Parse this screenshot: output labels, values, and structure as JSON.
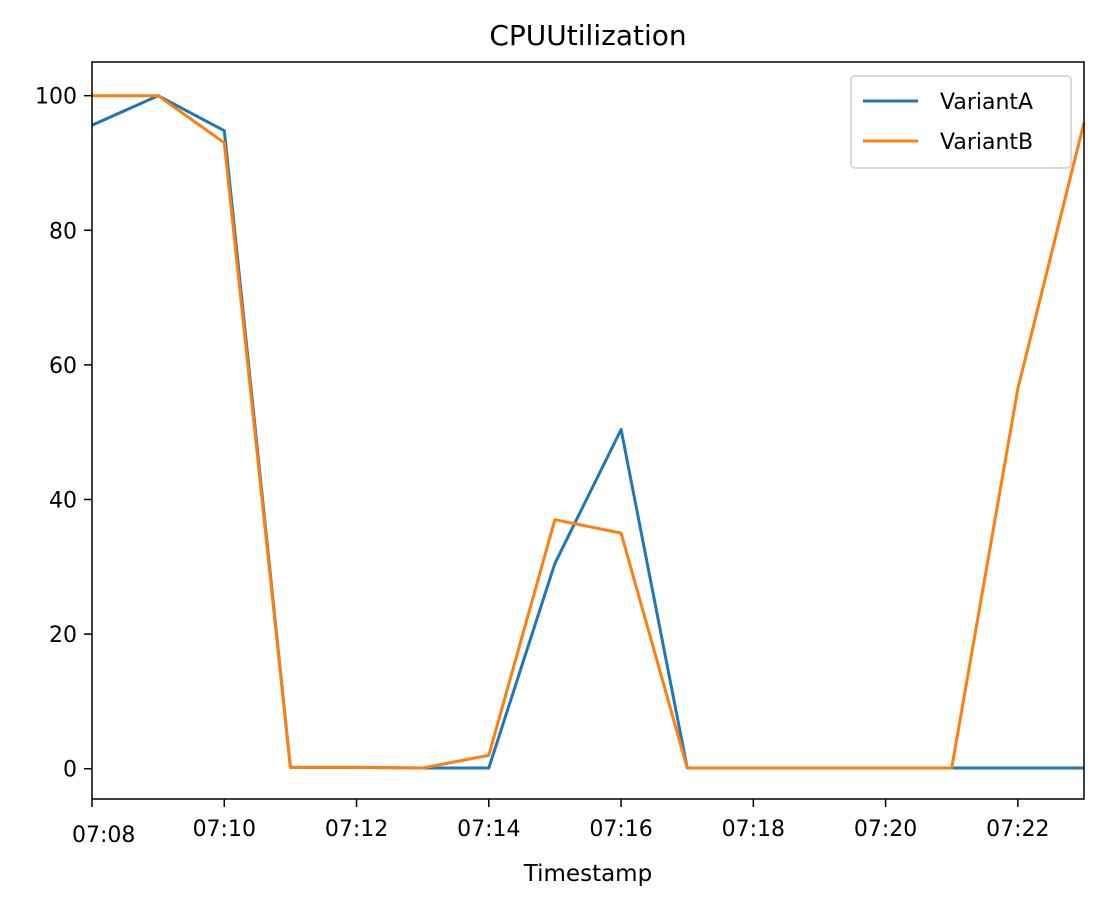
{
  "chart_data": {
    "type": "line",
    "title": "CPUUtilization",
    "xlabel": "Timestamp",
    "ylabel": "",
    "x": [
      "07:08",
      "07:09",
      "07:10",
      "07:11",
      "07:12",
      "07:13",
      "07:14",
      "07:15",
      "07:16",
      "07:17",
      "07:18",
      "07:19",
      "07:20",
      "07:21",
      "07:22",
      "07:23"
    ],
    "x_ticks": [
      "07:08",
      "07:10",
      "07:12",
      "07:14",
      "07:16",
      "07:18",
      "07:20",
      "07:22"
    ],
    "y_ticks": [
      0,
      20,
      40,
      60,
      80,
      100
    ],
    "ylim": [
      -4.5,
      105
    ],
    "xlim": [
      "07:08",
      "07:23"
    ],
    "grid": false,
    "legend_position": "top-right",
    "series": [
      {
        "name": "VariantA",
        "color": "#1f77b4",
        "values": [
          95.6,
          100.0,
          94.8,
          0.2,
          0.2,
          0.1,
          0.1,
          30.5,
          50.4,
          0.1,
          0.1,
          0.1,
          0.1,
          0.1,
          0.1,
          0.1
        ]
      },
      {
        "name": "VariantB",
        "color": "#ff7f0e",
        "values": [
          100.0,
          100.0,
          93.0,
          0.2,
          0.2,
          0.1,
          2.0,
          37.0,
          35.0,
          0.1,
          0.1,
          0.1,
          0.1,
          0.1,
          56.5,
          96.0
        ]
      }
    ]
  }
}
